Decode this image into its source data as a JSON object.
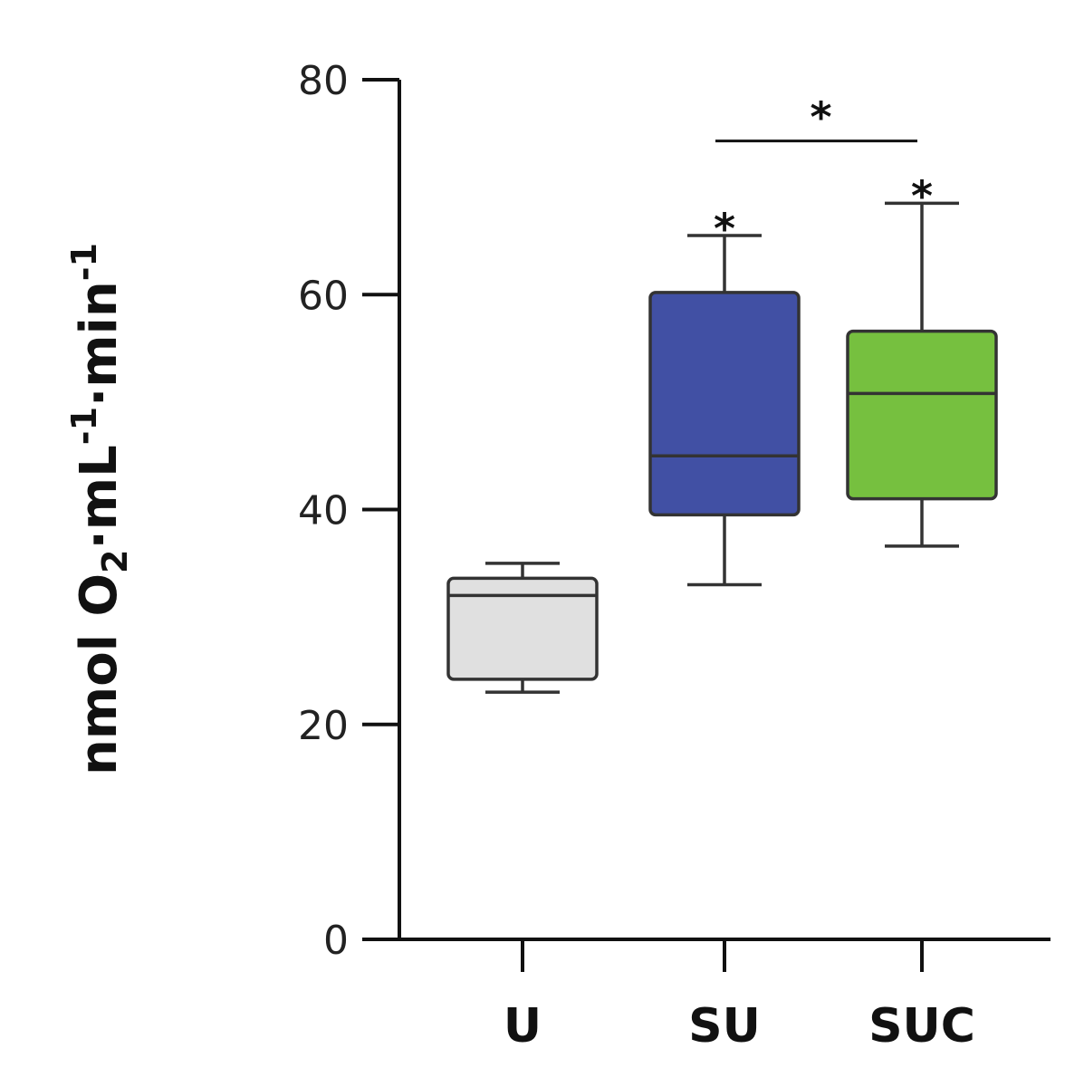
{
  "chart_data": {
    "type": "box",
    "title": "",
    "xlabel": "",
    "ylabel_parts": [
      "nmol O",
      "2",
      "·mL",
      "-1",
      "·min",
      "-1"
    ],
    "ylim": [
      0,
      80
    ],
    "yticks": [
      0,
      20,
      40,
      60,
      80
    ],
    "y_tick_labels": [
      "0",
      "20",
      "40",
      "60",
      "80"
    ],
    "categories": [
      "U",
      "SU",
      "SUC"
    ],
    "boxes": [
      {
        "category": "U",
        "min": 23.0,
        "q1": 24.2,
        "median": 32.0,
        "q3": 33.6,
        "max": 35.0,
        "color": "#e0e0e0"
      },
      {
        "category": "SU",
        "min": 33.0,
        "q1": 39.5,
        "median": 45.0,
        "q3": 60.2,
        "max": 65.5,
        "color": "#4150a4"
      },
      {
        "category": "SUC",
        "min": 36.6,
        "q1": 41.0,
        "median": 50.8,
        "q3": 56.6,
        "max": 68.5,
        "color": "#76c03f"
      }
    ],
    "annotations": [
      {
        "type": "star",
        "category": "SU",
        "text": "*",
        "y": 67.5
      },
      {
        "type": "star",
        "category": "SUC",
        "text": "*",
        "y": 70.5
      },
      {
        "type": "bracket",
        "from": "SU",
        "to": "SUC",
        "text": "*",
        "y": 74.3
      }
    ],
    "grid": false,
    "legend": "none"
  }
}
